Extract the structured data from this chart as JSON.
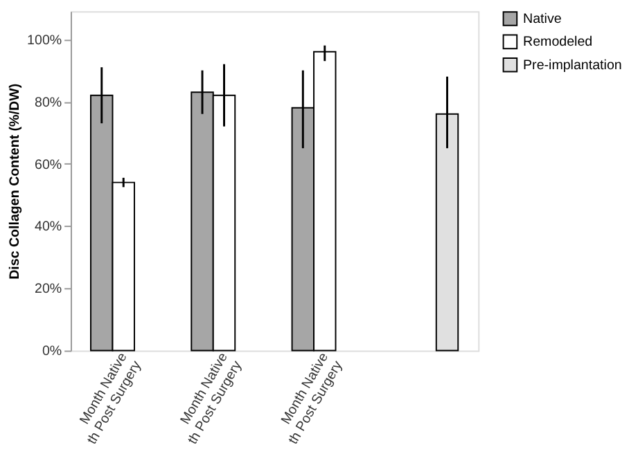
{
  "chart_data": {
    "type": "bar",
    "ylabel": "Disc Collagen Content (%/DW)",
    "categories": [
      "Month Native\nth Post Surgery",
      "Month Native\nth Post Surgery",
      "Month Native\nth Post Surgery",
      null
    ],
    "series": [
      {
        "name": "Native",
        "color": "#a6a6a6",
        "values": [
          82,
          83,
          78,
          null
        ],
        "errors": [
          [
            73,
            91
          ],
          [
            76,
            90
          ],
          [
            65,
            90
          ],
          null
        ]
      },
      {
        "name": "Remodeled",
        "color": "#ffffff",
        "values": [
          54,
          82,
          96,
          null
        ],
        "errors": [
          [
            52.5,
            55.5
          ],
          [
            72,
            92
          ],
          [
            93,
            98
          ],
          null
        ]
      },
      {
        "name": "Pre-implantation",
        "color": "#e0e0e0",
        "values": [
          null,
          null,
          null,
          76
        ],
        "errors": [
          null,
          null,
          null,
          [
            65,
            88
          ]
        ]
      }
    ],
    "ylim": [
      0,
      109
    ],
    "yticks": [
      {
        "value": 0,
        "label": "0%"
      },
      {
        "value": 20,
        "label": "20%"
      },
      {
        "value": 40,
        "label": "40%"
      },
      {
        "value": 60,
        "label": "60%"
      },
      {
        "value": 80,
        "label": "80%"
      },
      {
        "value": 100,
        "label": "100%"
      }
    ],
    "grid": false,
    "legend": "right"
  }
}
